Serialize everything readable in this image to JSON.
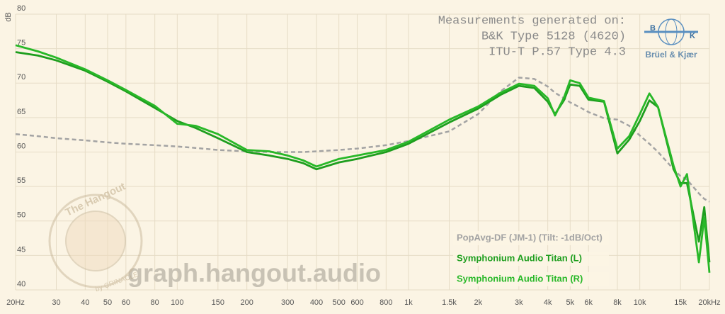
{
  "chart_data": {
    "type": "line",
    "ylabel": "dB",
    "log_x": true,
    "grid": true,
    "legend_position": "lower right",
    "annotations": [
      "Measurements generated on:",
      "B&K Type 5128 (4620)",
      "ITU-T P.57 Type 4.3"
    ],
    "logo": {
      "left": "B",
      "right": "K",
      "name": "Brüel & Kjær"
    },
    "watermark": "graph.hangout.audio",
    "badge": {
      "top": "The Hangout",
      "bottom": "by CRINACLE"
    },
    "xlim": [
      20,
      20000
    ],
    "ylim": [
      40,
      80
    ],
    "xticks": [
      {
        "value": 20,
        "label": "20Hz"
      },
      30,
      40,
      50,
      60,
      80,
      100,
      150,
      200,
      300,
      400,
      500,
      600,
      800,
      {
        "value": 1000,
        "label": "1k"
      },
      {
        "value": 1500,
        "label": "1.5k"
      },
      {
        "value": 2000,
        "label": "2k"
      },
      {
        "value": 3000,
        "label": "3k"
      },
      {
        "value": 4000,
        "label": "4k"
      },
      {
        "value": 5000,
        "label": "5k"
      },
      {
        "value": 6000,
        "label": "6k"
      },
      {
        "value": 8000,
        "label": "8k"
      },
      {
        "value": 10000,
        "label": "10k"
      },
      {
        "value": 15000,
        "label": "15k"
      },
      {
        "value": 20000,
        "label": "20kHz"
      }
    ],
    "yticks": [
      40,
      45,
      50,
      55,
      60,
      65,
      70,
      75,
      80
    ],
    "x": [
      20,
      25,
      30,
      40,
      50,
      60,
      80,
      100,
      120,
      150,
      200,
      250,
      300,
      350,
      400,
      500,
      600,
      800,
      1000,
      1500,
      2000,
      2500,
      3000,
      3500,
      4000,
      4300,
      4700,
      5000,
      5500,
      6000,
      7000,
      8000,
      9000,
      10000,
      11000,
      12000,
      14000,
      15000,
      16000,
      18000,
      19000,
      20000
    ],
    "series": [
      {
        "name": "PopAvg-DF (JM-1) (Tilt: -1dB/Oct)",
        "color": "#a3a3a3",
        "dashed": true,
        "values": [
          62.6,
          62.3,
          62.0,
          61.7,
          61.4,
          61.2,
          61.0,
          60.8,
          60.6,
          60.3,
          60.1,
          60.0,
          60.0,
          60.0,
          60.1,
          60.3,
          60.5,
          61.0,
          61.6,
          63.0,
          65.5,
          68.8,
          70.8,
          70.6,
          69.5,
          68.6,
          67.8,
          67.2,
          66.5,
          65.8,
          64.9,
          64.7,
          63.8,
          62.4,
          61.2,
          60.0,
          57.5,
          56.5,
          56.0,
          54.0,
          53.2,
          52.8
        ]
      },
      {
        "name": "Symphonium Audio Titan (L)",
        "color": "#1e9e1e",
        "values": [
          74.5,
          74.0,
          73.3,
          71.8,
          70.2,
          68.8,
          66.4,
          64.5,
          63.5,
          62.0,
          60.0,
          59.5,
          59.0,
          58.4,
          57.5,
          58.5,
          59.0,
          60.0,
          61.2,
          64.3,
          66.3,
          68.3,
          69.6,
          69.3,
          67.3,
          65.5,
          67.5,
          69.8,
          69.6,
          67.6,
          67.3,
          59.8,
          61.8,
          64.5,
          67.5,
          66.5,
          57.5,
          55.5,
          55.5,
          47.0,
          52.0,
          44.0
        ]
      },
      {
        "name": "Symphonium Audio Titan (R)",
        "color": "#28b828",
        "values": [
          75.5,
          74.6,
          73.7,
          72.0,
          70.4,
          69.0,
          66.7,
          64.1,
          63.8,
          62.6,
          60.3,
          60.1,
          59.5,
          58.8,
          57.9,
          59.0,
          59.5,
          60.3,
          61.5,
          64.7,
          66.6,
          68.6,
          69.9,
          69.6,
          67.8,
          65.3,
          67.9,
          70.4,
          70.0,
          67.9,
          67.4,
          60.5,
          62.3,
          65.5,
          68.5,
          66.5,
          58.0,
          55.0,
          56.8,
          44.0,
          50.5,
          42.5
        ]
      }
    ]
  }
}
